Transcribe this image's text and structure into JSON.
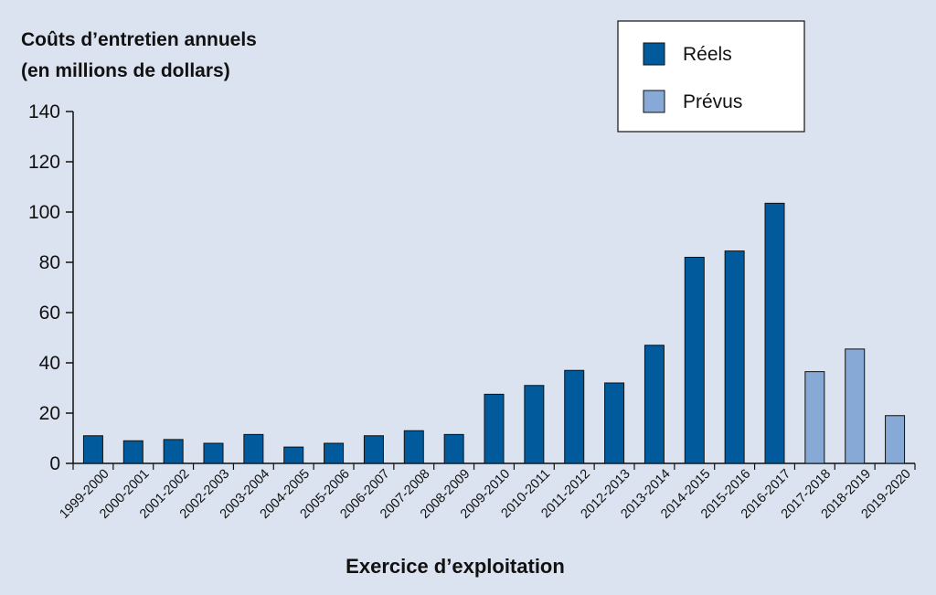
{
  "chart_data": {
    "type": "bar",
    "title": "",
    "ylabel_lines": [
      "Coûts d’entretien annuels",
      "(en millions de dollars)"
    ],
    "xlabel": "Exercice d’exploitation",
    "ylim": [
      0,
      140
    ],
    "yticks": [
      0,
      20,
      40,
      60,
      80,
      100,
      120,
      140
    ],
    "categories": [
      "1999-2000",
      "2000-2001",
      "2001-2002",
      "2002-2003",
      "2003-2004",
      "2004-2005",
      "2005-2006",
      "2006-2007",
      "2007-2008",
      "2008-2009",
      "2009-2010",
      "2010-2011",
      "2011-2012",
      "2012-2013",
      "2013-2014",
      "2014-2015",
      "2015-2016",
      "2016-2017",
      "2017-2018",
      "2018-2019",
      "2019-2020"
    ],
    "values": [
      11,
      9,
      9.5,
      8,
      11.5,
      6.5,
      8,
      11,
      13,
      11.5,
      27.5,
      31,
      37,
      32,
      47,
      82,
      84.5,
      103.5,
      36.5,
      45.5,
      19
    ],
    "series_kind": [
      "actual",
      "actual",
      "actual",
      "actual",
      "actual",
      "actual",
      "actual",
      "actual",
      "actual",
      "actual",
      "actual",
      "actual",
      "actual",
      "actual",
      "actual",
      "actual",
      "actual",
      "actual",
      "planned",
      "planned",
      "planned"
    ],
    "legend": {
      "placement": "top-right",
      "entries": [
        {
          "key": "actual",
          "label": "Réels",
          "color": "#005a9c"
        },
        {
          "key": "planned",
          "label": "Prévus",
          "color": "#86a9d5"
        }
      ]
    },
    "grid": false
  }
}
